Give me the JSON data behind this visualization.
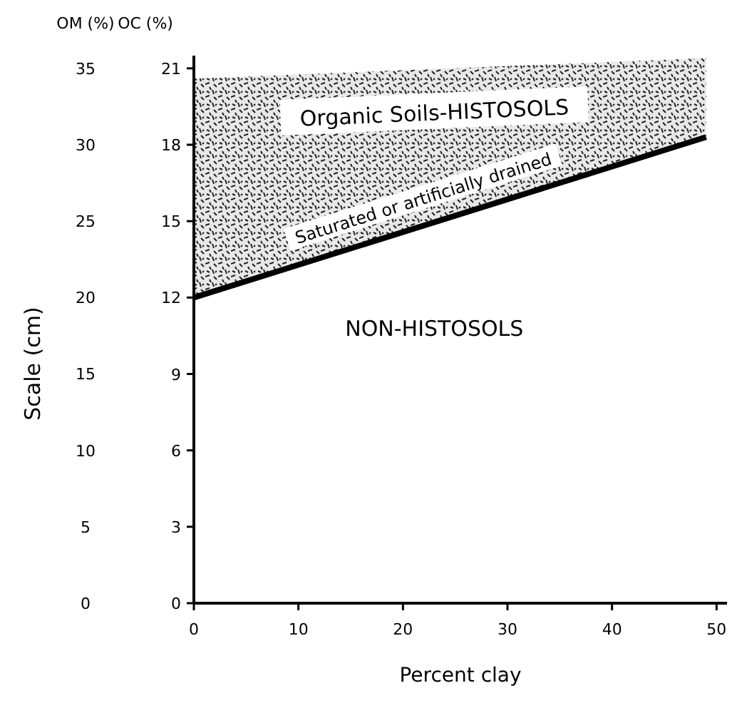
{
  "chart_data": {
    "type": "line",
    "x": [
      0,
      49
    ],
    "series": [
      {
        "color": "#000000",
        "values": [
          12,
          18.3
        ],
        "lower": [
          12,
          18.3
        ],
        "upper": [
          20.6,
          21.4
        ]
      }
    ],
    "xlabel": "Percent clay",
    "ylabel": "OC (%)",
    "y2label": "OM (%)",
    "xlim": [
      0,
      51
    ],
    "xticks": [
      0,
      10,
      20,
      30,
      40,
      50
    ],
    "ylim": [
      0,
      21.5
    ],
    "yticks": [
      0,
      3,
      6,
      9,
      12,
      15,
      18,
      21
    ],
    "y2lim": [
      0,
      35.83
    ],
    "y2ticks": [
      0,
      5,
      10,
      15,
      20,
      25,
      30,
      35
    ],
    "annotations": [
      "Scale (cm)",
      "Organic Soils-HISTOSOLS",
      "Saturated or artificially drained",
      "NON-HISTOSOLS"
    ],
    "grid": false,
    "marker": "none",
    "line_style": "solid"
  }
}
